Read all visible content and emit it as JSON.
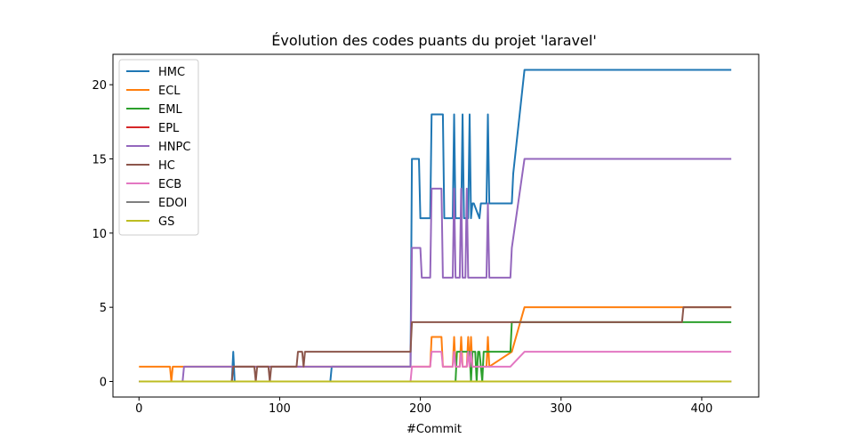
{
  "chart_data": {
    "type": "line",
    "title": "Évolution des codes puants du projet 'laravel'",
    "xlabel": "#Commit",
    "ylabel": "",
    "xlim": [
      -18.5,
      440.5
    ],
    "ylim": [
      -1.05,
      22.05
    ],
    "xticks": [
      0,
      100,
      200,
      300,
      400
    ],
    "yticks": [
      0,
      5,
      10,
      15,
      20
    ],
    "grid": false,
    "legend_position": "top-left",
    "series": [
      {
        "name": "HMC",
        "color": "#1f77b4",
        "x": [
          0,
          66,
          67,
          68,
          136,
          137,
          193,
          194,
          199,
          200,
          207,
          208,
          216,
          217,
          223,
          224,
          225,
          229,
          230,
          231,
          234,
          235,
          236,
          237,
          238,
          242,
          243,
          244,
          247,
          248,
          249,
          265,
          266,
          274,
          421
        ],
        "y": [
          0,
          0,
          2,
          0,
          0,
          1,
          1,
          15,
          15,
          11,
          11,
          18,
          18,
          11,
          11,
          18,
          11,
          11,
          18,
          11,
          11,
          18,
          11,
          12,
          12,
          11,
          12,
          12,
          12,
          18,
          12,
          12,
          14,
          21,
          21
        ]
      },
      {
        "name": "ECL",
        "color": "#ff7f0e",
        "x": [
          0,
          22,
          23,
          24,
          193,
          194,
          207,
          208,
          215,
          216,
          223,
          224,
          225,
          228,
          229,
          230,
          233,
          234,
          235,
          236,
          237,
          238,
          247,
          248,
          249,
          265,
          274,
          421
        ],
        "y": [
          1,
          1,
          0,
          1,
          1,
          1,
          1,
          3,
          3,
          1,
          1,
          3,
          1,
          1,
          3,
          1,
          1,
          3,
          1,
          3,
          1,
          1,
          1,
          3,
          1,
          2,
          5,
          5
        ]
      },
      {
        "name": "EML",
        "color": "#2ca02c",
        "x": [
          0,
          225,
          226,
          235,
          236,
          237,
          239,
          240,
          241,
          242,
          244,
          245,
          247,
          248,
          264,
          265,
          266,
          421
        ],
        "y": [
          0,
          0,
          2,
          2,
          0,
          2,
          2,
          0,
          2,
          2,
          0,
          2,
          2,
          2,
          2,
          4,
          4,
          4
        ]
      },
      {
        "name": "EPL",
        "color": "#d62728",
        "x": [
          0,
          421
        ],
        "y": [
          0,
          0
        ]
      },
      {
        "name": "HNPC",
        "color": "#9467bd",
        "x": [
          0,
          31,
          32,
          193,
          194,
          200,
          201,
          207,
          208,
          215,
          216,
          223,
          224,
          225,
          228,
          229,
          230,
          232,
          233,
          234,
          247,
          248,
          249,
          264,
          265,
          274,
          421
        ],
        "y": [
          0,
          0,
          1,
          1,
          9,
          9,
          7,
          7,
          13,
          13,
          7,
          7,
          13,
          7,
          7,
          13,
          7,
          7,
          13,
          7,
          7,
          12,
          7,
          7,
          9,
          15,
          15
        ]
      },
      {
        "name": "HC",
        "color": "#8c564b",
        "x": [
          0,
          66,
          67,
          82,
          83,
          84,
          92,
          93,
          94,
          112,
          113,
          116,
          117,
          118,
          193,
          194,
          386,
          387,
          421
        ],
        "y": [
          0,
          0,
          1,
          1,
          0,
          1,
          1,
          0,
          1,
          1,
          2,
          2,
          1,
          2,
          2,
          4,
          4,
          5,
          5
        ]
      },
      {
        "name": "ECB",
        "color": "#e377c2",
        "x": [
          0,
          193,
          194,
          207,
          208,
          215,
          216,
          223,
          224,
          225,
          228,
          229,
          230,
          233,
          234,
          235,
          236,
          237,
          238,
          264,
          274,
          421
        ],
        "y": [
          0,
          0,
          1,
          1,
          2,
          2,
          1,
          1,
          2,
          1,
          1,
          2,
          1,
          1,
          2,
          1,
          2,
          1,
          1,
          1,
          2,
          2
        ]
      },
      {
        "name": "EDOI",
        "color": "#7f7f7f",
        "x": [
          0,
          421
        ],
        "y": [
          0,
          0
        ]
      },
      {
        "name": "GS",
        "color": "#bcbd22",
        "x": [
          0,
          421
        ],
        "y": [
          0,
          0
        ]
      }
    ]
  }
}
